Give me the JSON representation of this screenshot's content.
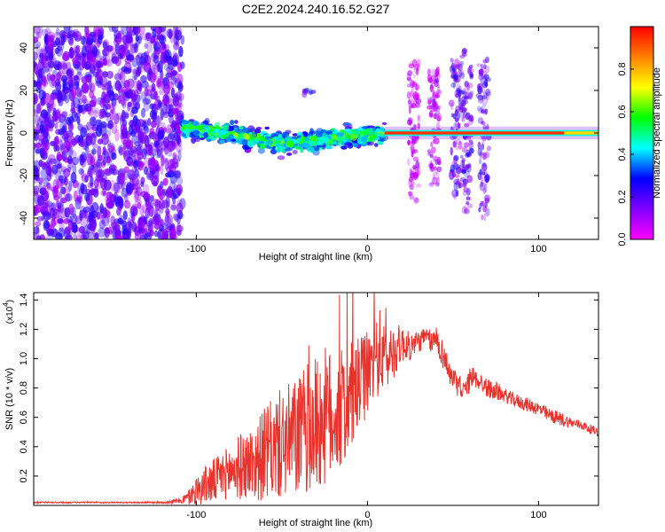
{
  "title": "C2E2.2024.240.16.52.G27",
  "chart_data": [
    {
      "type": "heatmap",
      "xlabel": "Height of straight line (km)",
      "ylabel": "Frequency (Hz)",
      "xlim": [
        -195,
        135
      ],
      "ylim": [
        -50,
        50
      ],
      "xticks": [
        -100,
        0,
        100
      ],
      "xtick_labels": [
        "-100",
        "0",
        "100"
      ],
      "yticks": [
        -40,
        -20,
        0,
        20,
        40
      ],
      "ytick_labels": [
        "-40",
        "-20",
        "0",
        "20",
        "40"
      ],
      "grid": false,
      "colorbar": {
        "label": "Normalized spectral amplitude",
        "range": [
          0,
          1
        ],
        "ticks": [
          0.0,
          0.2,
          0.4,
          0.6,
          0.8
        ],
        "tick_labels": [
          "0.0",
          "0.2",
          "0.4",
          "0.6",
          "0.8"
        ],
        "colormap": [
          "#ff00ff",
          "#8000ff",
          "#0000ff",
          "#00ffff",
          "#00ff00",
          "#ffff00",
          "#ff8000",
          "#ff0000"
        ]
      },
      "regions": [
        {
          "x": [
            -195,
            -108
          ],
          "freq_spread": 50,
          "level": 0.18
        },
        {
          "x": [
            -108,
            10
          ],
          "freq_center": [
            3,
            -5,
            0
          ],
          "freq_spread": 6,
          "level": 0.45
        },
        {
          "x": [
            10,
            135
          ],
          "freq_center": 0,
          "freq_spread": 1,
          "level": 0.95
        }
      ],
      "bursts": [
        {
          "x": 27,
          "freq_range": [
            -32,
            33
          ],
          "level": 0.08
        },
        {
          "x": 39,
          "freq_range": [
            -25,
            30
          ],
          "level": 0.1
        },
        {
          "x": 52,
          "freq_range": [
            -30,
            35
          ],
          "level": 0.2
        },
        {
          "x": 58,
          "freq_range": [
            -40,
            40
          ],
          "level": 0.2
        },
        {
          "x": 68,
          "freq_range": [
            -40,
            35
          ],
          "level": 0.2
        },
        {
          "x": -34,
          "freq_range": [
            18,
            20
          ],
          "level": 0.25
        }
      ]
    },
    {
      "type": "line",
      "xlabel": "Height of straight line (km)",
      "ylabel": "SNR (10 * v/v)",
      "scale_label": "(x10",
      "scale_exponent": "4",
      "xlim": [
        -195,
        135
      ],
      "ylim": [
        0,
        1.45
      ],
      "xticks": [
        -100,
        0,
        100
      ],
      "xtick_labels": [
        "-100",
        "0",
        "100"
      ],
      "yticks": [
        0.2,
        0.4,
        0.6,
        0.8,
        1.0,
        1.2,
        1.4
      ],
      "ytick_labels": [
        "0.2",
        "0.4",
        "0.6",
        "0.8",
        "1.0",
        "1.2",
        "1.4"
      ],
      "grid": false,
      "line_color": "#e8332d",
      "series": [
        {
          "x": [
            -195,
            -180,
            -160,
            -140,
            -120,
            -110,
            -105,
            -100,
            -95,
            -90,
            -85,
            -80,
            -75,
            -70,
            -65,
            -60,
            -55,
            -50,
            -45,
            -40,
            -35,
            -30,
            -25,
            -20,
            -15,
            -10,
            -5,
            0,
            5,
            8,
            10,
            15,
            20,
            25,
            30,
            35,
            38,
            40,
            45,
            50,
            55,
            58,
            60,
            65,
            70,
            75,
            80,
            85,
            90,
            95,
            100,
            105,
            110,
            115,
            120,
            125,
            130,
            135
          ],
          "values": [
            0.02,
            0.02,
            0.02,
            0.02,
            0.02,
            0.03,
            0.05,
            0.1,
            0.14,
            0.16,
            0.2,
            0.23,
            0.26,
            0.28,
            0.3,
            0.35,
            0.38,
            0.42,
            0.44,
            0.47,
            0.52,
            0.55,
            0.6,
            0.62,
            0.65,
            0.72,
            0.82,
            0.9,
            1.0,
            1.05,
            0.98,
            1.05,
            1.1,
            1.08,
            1.12,
            1.15,
            1.1,
            1.15,
            1.0,
            0.85,
            0.8,
            0.78,
            0.88,
            0.85,
            0.8,
            0.78,
            0.75,
            0.72,
            0.7,
            0.68,
            0.66,
            0.62,
            0.6,
            0.58,
            0.56,
            0.55,
            0.52,
            0.5
          ],
          "noise": [
            0.003,
            0.003,
            0.003,
            0.003,
            0.004,
            0.01,
            0.03,
            0.06,
            0.08,
            0.1,
            0.1,
            0.12,
            0.14,
            0.15,
            0.17,
            0.2,
            0.22,
            0.24,
            0.25,
            0.27,
            0.28,
            0.3,
            0.3,
            0.28,
            0.26,
            0.24,
            0.2,
            0.18,
            0.16,
            0.2,
            0.14,
            0.12,
            0.08,
            0.06,
            0.05,
            0.04,
            0.05,
            0.06,
            0.06,
            0.05,
            0.05,
            0.05,
            0.05,
            0.04,
            0.04,
            0.04,
            0.03,
            0.03,
            0.03,
            0.03,
            0.03,
            0.03,
            0.03,
            0.03,
            0.02,
            0.02,
            0.02,
            0.02
          ]
        }
      ]
    }
  ]
}
